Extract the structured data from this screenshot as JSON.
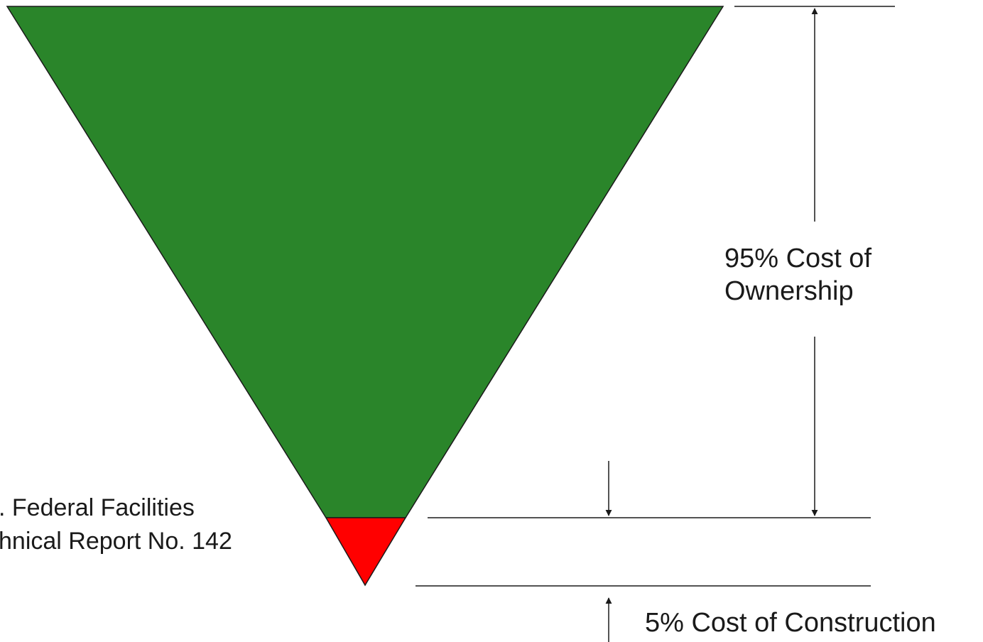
{
  "labels": {
    "ownership_line1": "95% Cost of",
    "ownership_line2": "Ownership",
    "construction": "5% Cost of Construction",
    "source_line1": ". Federal Facilities",
    "source_line2": "hnical Report No. 142"
  },
  "colors": {
    "ownership_fill": "#2a852a",
    "construction_fill": "#ff0000",
    "outline": "#1a1a1a",
    "background": "#ffffff"
  },
  "proportions": {
    "ownership_percent": 95,
    "construction_percent": 5
  }
}
